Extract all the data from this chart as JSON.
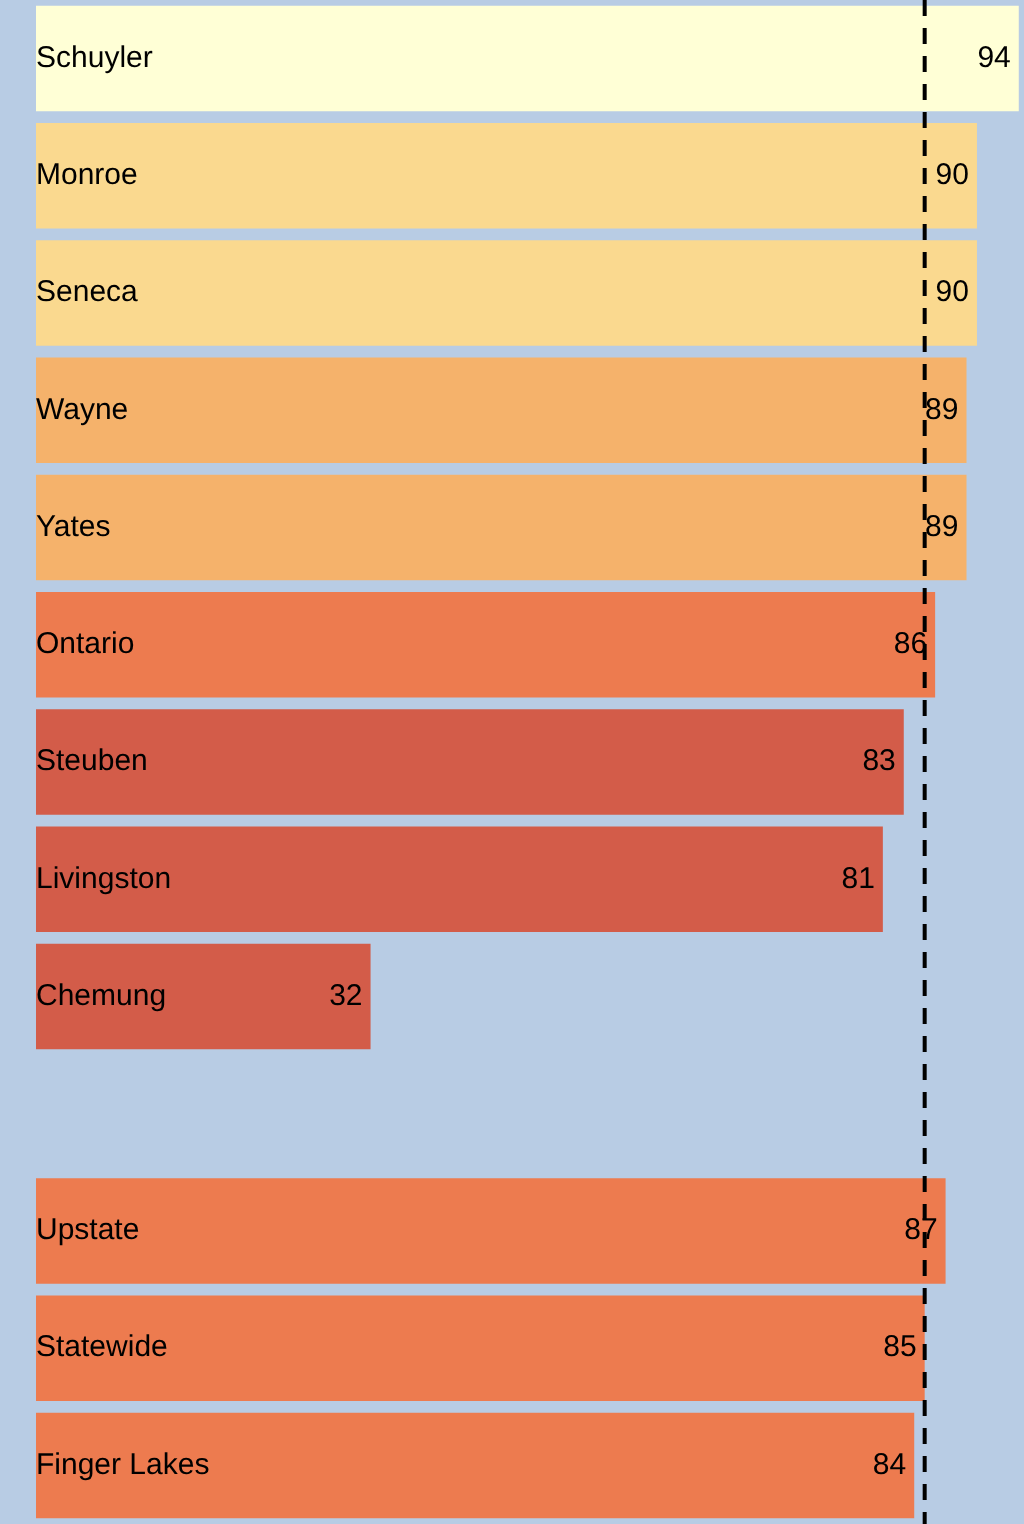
{
  "chart_data": {
    "type": "bar",
    "orientation": "horizontal",
    "categories": [
      "Schuyler",
      "Monroe",
      "Seneca",
      "Wayne",
      "Yates",
      "Ontario",
      "Steuben",
      "Livingston",
      "Chemung",
      null,
      "Upstate",
      "Statewide",
      "Finger Lakes"
    ],
    "values": [
      94,
      90,
      90,
      89,
      89,
      86,
      83,
      81,
      32,
      null,
      87,
      85,
      84
    ],
    "colors": [
      "#ffffd6",
      "#fad98f",
      "#fad98f",
      "#f5b26b",
      "#f5b26b",
      "#ed7b4f",
      "#d35c49",
      "#d35c49",
      "#d35c49",
      "#b8cce4",
      "#ed7b4f",
      "#ed7b4f",
      "#ed7b4f"
    ],
    "xlim": [
      0,
      94.5
    ],
    "data_labels": true,
    "legend": false,
    "ref_lines": [
      {
        "axis": "x",
        "value": 85,
        "color": "#000000",
        "line_style": "dashed"
      }
    ]
  }
}
